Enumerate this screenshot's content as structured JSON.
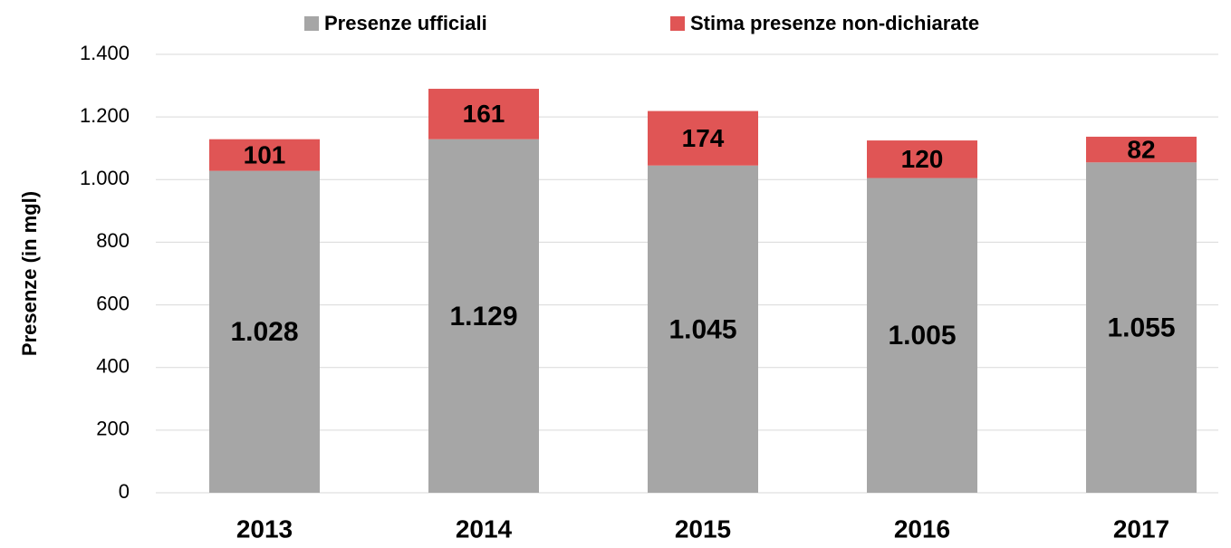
{
  "chart_data": {
    "type": "stacked_bar",
    "y_axis_label": "Presenze (in mgl)",
    "categories": [
      "2013",
      "2014",
      "2015",
      "2016",
      "2017"
    ],
    "series": [
      {
        "name": "Presenze ufficiali",
        "color": "#a6a6a6",
        "values": [
          1028,
          1129,
          1045,
          1005,
          1055
        ],
        "value_labels": [
          "1.028",
          "1.129",
          "1.045",
          "1.005",
          "1.055"
        ]
      },
      {
        "name": "Stima presenze non-dichiarate",
        "color": "#e05555",
        "values": [
          101,
          161,
          174,
          120,
          82
        ]
      }
    ],
    "ylim": [
      0,
      1400
    ],
    "yticks": [
      0,
      200,
      400,
      600,
      800,
      {
        "value": 1000,
        "label": "1.000"
      },
      {
        "value": 1200,
        "label": "1.200"
      },
      {
        "value": 1400,
        "label": "1.400"
      }
    ],
    "grid": true,
    "legend": "top"
  }
}
